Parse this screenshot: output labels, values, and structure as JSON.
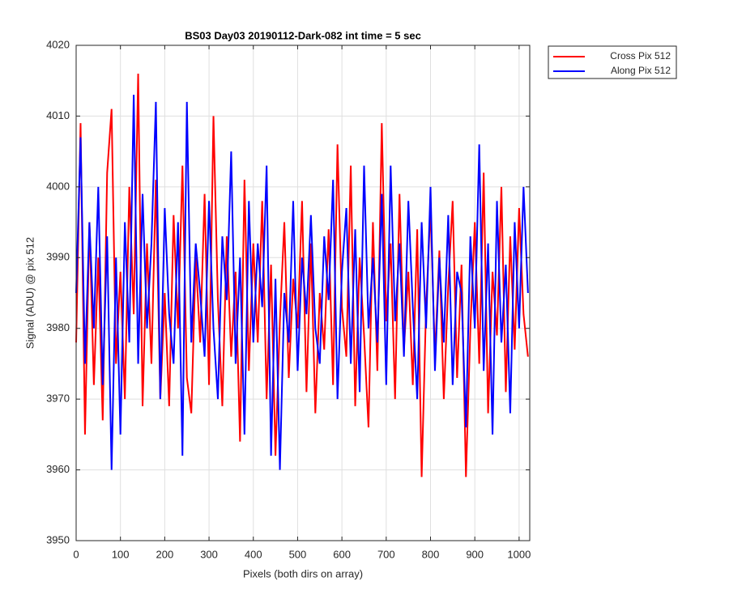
{
  "chart_data": {
    "type": "line",
    "title": "BS03 Day03 20190112-Dark-082 int time = 5 sec",
    "xlabel": "Pixels (both dirs on array)",
    "ylabel": "Signal (ADU) @ pix 512",
    "x": [
      0,
      10,
      20,
      30,
      40,
      50,
      60,
      70,
      80,
      90,
      100,
      110,
      120,
      130,
      140,
      150,
      160,
      170,
      180,
      190,
      200,
      210,
      220,
      230,
      240,
      250,
      260,
      270,
      280,
      290,
      300,
      310,
      320,
      330,
      340,
      350,
      360,
      370,
      380,
      390,
      400,
      410,
      420,
      430,
      440,
      450,
      460,
      470,
      480,
      490,
      500,
      510,
      520,
      530,
      540,
      550,
      560,
      570,
      580,
      590,
      600,
      610,
      620,
      630,
      640,
      650,
      660,
      670,
      680,
      690,
      700,
      710,
      720,
      730,
      740,
      750,
      760,
      770,
      780,
      790,
      800,
      810,
      820,
      830,
      840,
      850,
      860,
      870,
      880,
      890,
      900,
      910,
      920,
      930,
      940,
      950,
      960,
      970,
      980,
      990,
      1000,
      1010,
      1020
    ],
    "series": [
      {
        "name": "Cross Pix 512",
        "color": "#ff0000",
        "values": [
          3978,
          4009,
          3965,
          3995,
          3972,
          3990,
          3967,
          4002,
          4011,
          3975,
          3988,
          3970,
          4000,
          3982,
          4016,
          3969,
          3992,
          3975,
          4001,
          3970,
          3985,
          3969,
          3996,
          3980,
          4003,
          3973,
          3968,
          3990,
          3978,
          3999,
          3972,
          4010,
          3984,
          3969,
          3993,
          3976,
          3988,
          3964,
          4001,
          3974,
          3992,
          3978,
          3998,
          3970,
          3989,
          3962,
          3981,
          3995,
          3973,
          3987,
          3980,
          3998,
          3971,
          3992,
          3968,
          3985,
          3977,
          3994,
          3972,
          4006,
          3983,
          3976,
          4003,
          3969,
          3990,
          3979,
          3966,
          3995,
          3974,
          4009,
          3981,
          3992,
          3970,
          3999,
          3977,
          3988,
          3972,
          3994,
          3959,
          3983,
          3997,
          3976,
          3991,
          3970,
          3986,
          3998,
          3973,
          3989,
          3959,
          3980,
          3995,
          3975,
          4002,
          3968,
          3988,
          3979,
          4000,
          3971,
          3993,
          3977,
          3997,
          3982,
          3976
        ]
      },
      {
        "name": "Along Pix 512",
        "color": "#0000ff",
        "values": [
          3985,
          4007,
          3975,
          3995,
          3980,
          4000,
          3972,
          3993,
          3960,
          3990,
          3965,
          3995,
          3978,
          4013,
          3975,
          3999,
          3980,
          3992,
          4012,
          3970,
          3997,
          3982,
          3975,
          3995,
          3962,
          4012,
          3978,
          3992,
          3985,
          3976,
          3998,
          3980,
          3970,
          3993,
          3984,
          4005,
          3975,
          3990,
          3965,
          3998,
          3978,
          3992,
          3983,
          4003,
          3962,
          3987,
          3960,
          3985,
          3978,
          3998,
          3974,
          3990,
          3982,
          3996,
          3980,
          3975,
          3993,
          3984,
          4001,
          3970,
          3988,
          3997,
          3975,
          3994,
          3971,
          4003,
          3980,
          3990,
          3978,
          3999,
          3972,
          4003,
          3981,
          3992,
          3976,
          3998,
          3983,
          3970,
          3995,
          3980,
          4000,
          3974,
          3990,
          3978,
          3996,
          3972,
          3988,
          3985,
          3966,
          3993,
          3980,
          4006,
          3974,
          3992,
          3965,
          3998,
          3978,
          3989,
          3968,
          3995,
          3980,
          4000,
          3985
        ]
      }
    ],
    "xlim": [
      0,
      1024
    ],
    "ylim": [
      3950,
      4020
    ],
    "xticks": [
      0,
      100,
      200,
      300,
      400,
      500,
      600,
      700,
      800,
      900,
      1000
    ],
    "yticks": [
      3950,
      3960,
      3970,
      3980,
      3990,
      4000,
      4010,
      4020
    ],
    "grid": true,
    "legend": "outside-top-right"
  }
}
